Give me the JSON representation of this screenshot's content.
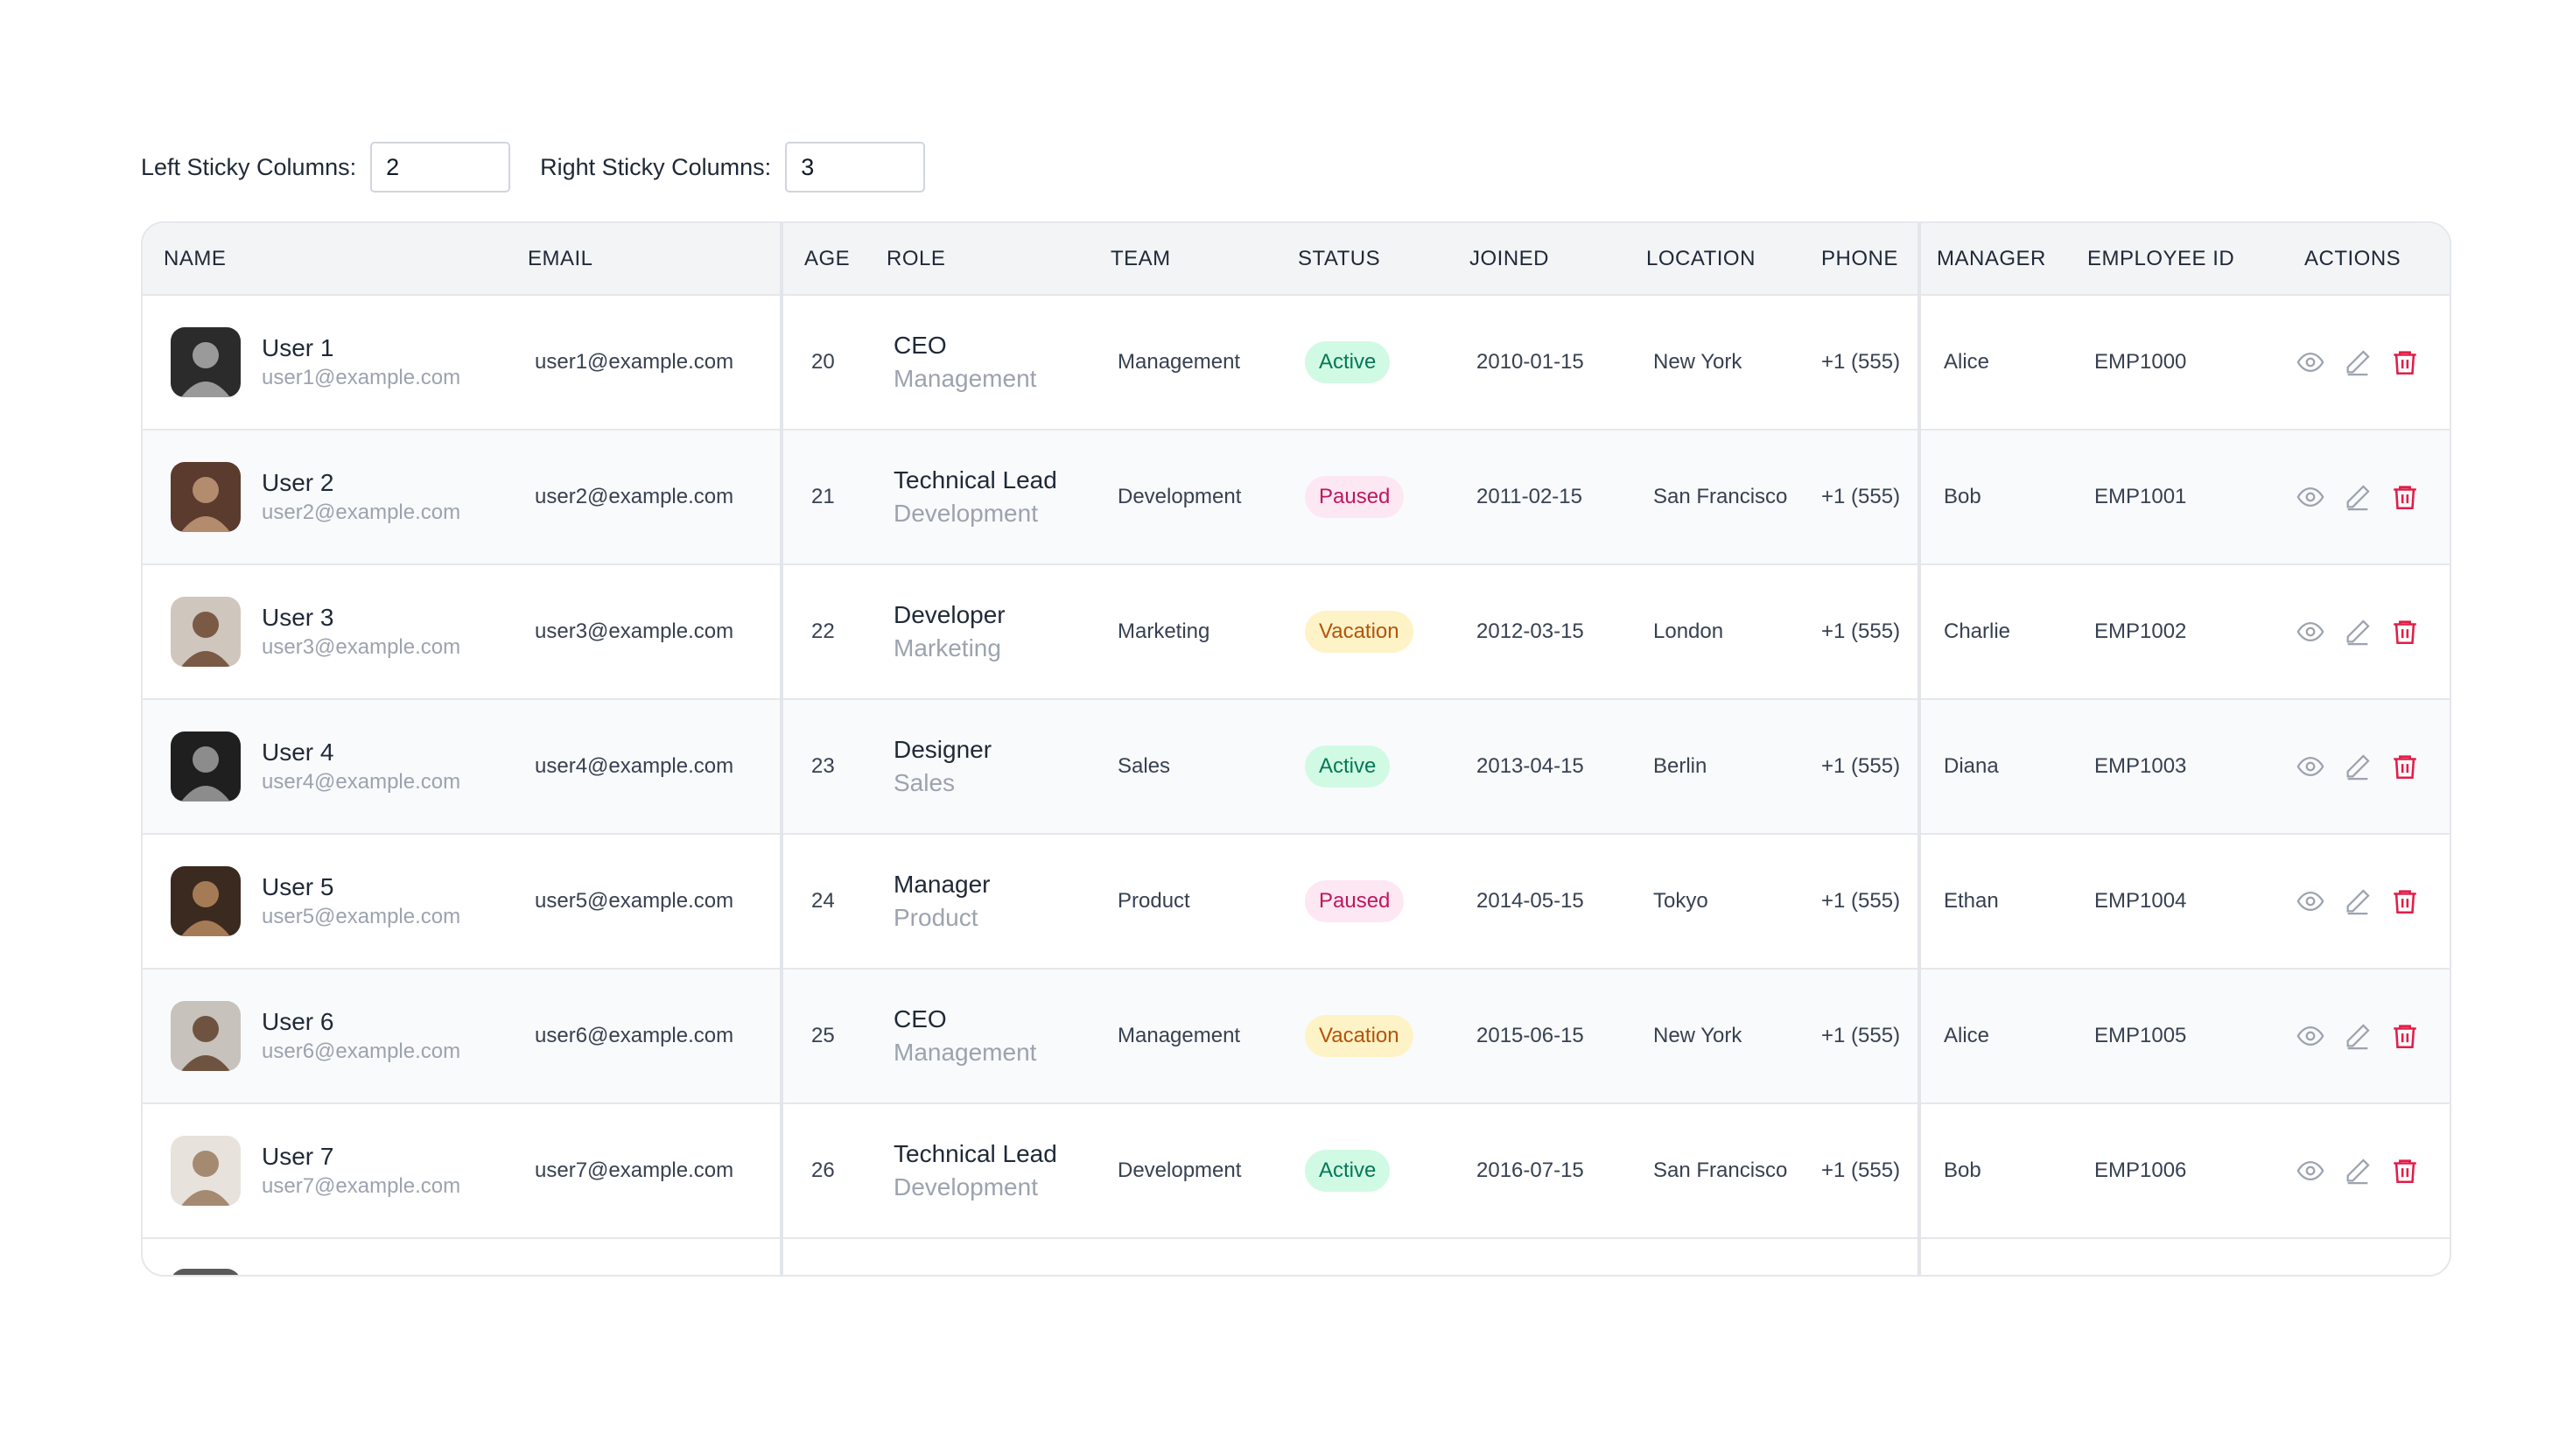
{
  "controls": {
    "left_label": "Left Sticky Columns:",
    "left_value": "2",
    "right_label": "Right Sticky Columns:",
    "right_value": "3"
  },
  "columns": [
    "NAME",
    "EMAIL",
    "AGE",
    "ROLE",
    "TEAM",
    "STATUS",
    "JOINED",
    "LOCATION",
    "PHONE",
    "MANAGER",
    "EMPLOYEE ID",
    "ACTIONS"
  ],
  "status_colors": {
    "Active": {
      "bg": "#d1fae5",
      "fg": "#047857"
    },
    "Paused": {
      "bg": "#fce7f3",
      "fg": "#be185d"
    },
    "Vacation": {
      "bg": "#fef3c7",
      "fg": "#b45309"
    }
  },
  "action_icons": [
    "eye-icon",
    "pencil-icon",
    "trash-icon"
  ],
  "rows": [
    {
      "name": "User 1",
      "sub_email": "user1@example.com",
      "email": "user1@example.com",
      "age": "20",
      "role": "CEO",
      "role_team": "Management",
      "team": "Management",
      "status": "Active",
      "joined": "2010-01-15",
      "location": "New York",
      "phone": "+1 (555)",
      "manager": "Alice",
      "employee_id": "EMP1000"
    },
    {
      "name": "User 2",
      "sub_email": "user2@example.com",
      "email": "user2@example.com",
      "age": "21",
      "role": "Technical Lead",
      "role_team": "Development",
      "team": "Development",
      "status": "Paused",
      "joined": "2011-02-15",
      "location": "San Francisco",
      "phone": "+1 (555)",
      "manager": "Bob",
      "employee_id": "EMP1001"
    },
    {
      "name": "User 3",
      "sub_email": "user3@example.com",
      "email": "user3@example.com",
      "age": "22",
      "role": "Developer",
      "role_team": "Marketing",
      "team": "Marketing",
      "status": "Vacation",
      "joined": "2012-03-15",
      "location": "London",
      "phone": "+1 (555)",
      "manager": "Charlie",
      "employee_id": "EMP1002"
    },
    {
      "name": "User 4",
      "sub_email": "user4@example.com",
      "email": "user4@example.com",
      "age": "23",
      "role": "Designer",
      "role_team": "Sales",
      "team": "Sales",
      "status": "Active",
      "joined": "2013-04-15",
      "location": "Berlin",
      "phone": "+1 (555)",
      "manager": "Diana",
      "employee_id": "EMP1003"
    },
    {
      "name": "User 5",
      "sub_email": "user5@example.com",
      "email": "user5@example.com",
      "age": "24",
      "role": "Manager",
      "role_team": "Product",
      "team": "Product",
      "status": "Paused",
      "joined": "2014-05-15",
      "location": "Tokyo",
      "phone": "+1 (555)",
      "manager": "Ethan",
      "employee_id": "EMP1004"
    },
    {
      "name": "User 6",
      "sub_email": "user6@example.com",
      "email": "user6@example.com",
      "age": "25",
      "role": "CEO",
      "role_team": "Management",
      "team": "Management",
      "status": "Vacation",
      "joined": "2015-06-15",
      "location": "New York",
      "phone": "+1 (555)",
      "manager": "Alice",
      "employee_id": "EMP1005"
    },
    {
      "name": "User 7",
      "sub_email": "user7@example.com",
      "email": "user7@example.com",
      "age": "26",
      "role": "Technical Lead",
      "role_team": "Development",
      "team": "Development",
      "status": "Active",
      "joined": "2016-07-15",
      "location": "San Francisco",
      "phone": "+1 (555)",
      "manager": "Bob",
      "employee_id": "EMP1006"
    }
  ]
}
